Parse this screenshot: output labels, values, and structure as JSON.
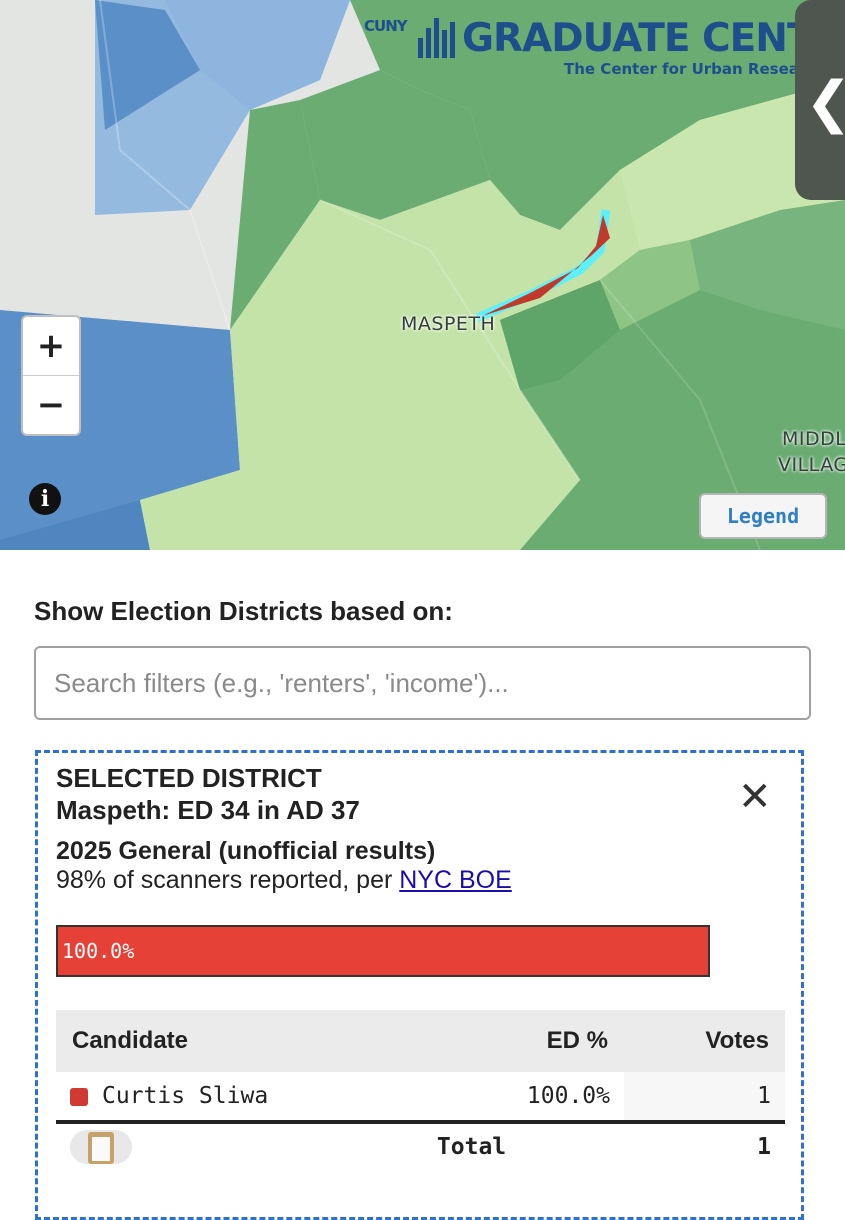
{
  "map": {
    "logo": {
      "cuny": "CUNY",
      "title": "GRADUATE CENTE",
      "subtitle": "The Center for Urban Resea"
    },
    "side_toggle_glyph": "❮",
    "zoom_in_label": "+",
    "zoom_out_label": "−",
    "info_label": "i",
    "legend_label": "Legend",
    "place_labels": {
      "maspeth": "MASPETH",
      "middle_line1": "MIDDL",
      "middle_line2": "VILLAG"
    },
    "colors": {
      "dark_green": "#6aac72",
      "light_green": "#c4e3a9",
      "mid_green": "#92c98a",
      "blue": "#5b8fc7",
      "light_blue": "#94badf",
      "highlight": "#5ef0f8",
      "selected": "#c0392b"
    }
  },
  "filter": {
    "heading": "Show Election Districts based on:",
    "search_placeholder": "Search filters (e.g., 'renters', 'income')..."
  },
  "selected": {
    "label": "SELECTED DISTRICT",
    "name": "Maspeth: ED 34 in AD 37",
    "close_glyph": "✕",
    "election": "2025 General (unofficial results)",
    "reported_prefix": "98% of scanners reported, per ",
    "reported_link": "NYC BOE",
    "bar_label": "100.0%",
    "bar_fraction": 1.0,
    "bar_color": "#e54136"
  },
  "results": {
    "headers": {
      "candidate": "Candidate",
      "ed_pct": "ED %",
      "votes": "Votes"
    },
    "rows": [
      {
        "candidate": "Curtis Sliwa",
        "ed_pct": "100.0%",
        "votes": "1",
        "color": "#cf3a32"
      }
    ],
    "total": {
      "label": "Total",
      "votes": "1"
    }
  }
}
